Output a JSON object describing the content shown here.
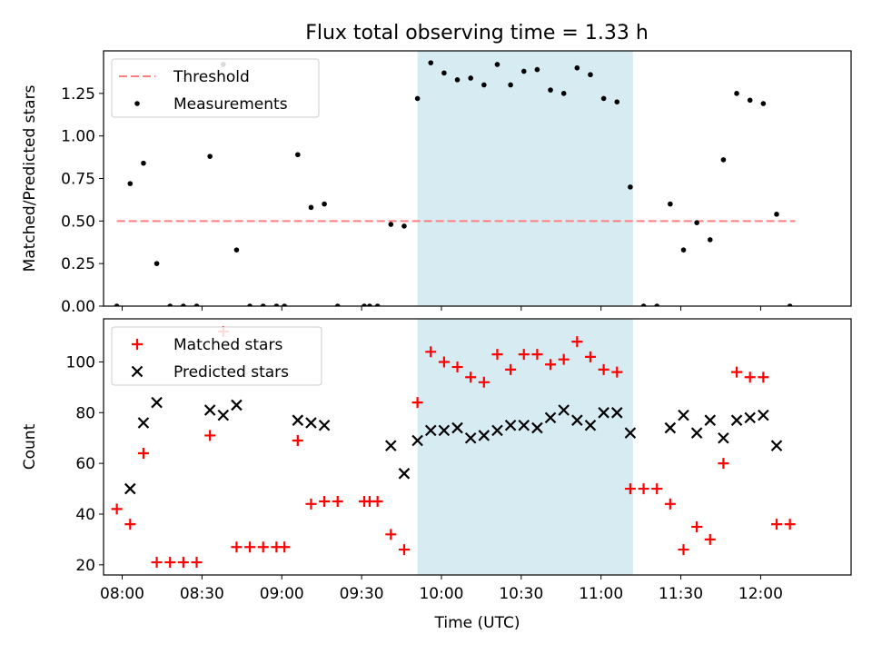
{
  "chart_data": [
    {
      "type": "scatter",
      "title": "Flux total observing time = 1.33 h",
      "ylabel": "Matched/Predicted stars",
      "xlabel": "",
      "ylim": [
        0,
        1.5
      ],
      "xlim": [
        "07:53",
        "12:34"
      ],
      "yticks": [
        0.0,
        0.25,
        0.5,
        0.75,
        1.0,
        1.25
      ],
      "ytick_labels": [
        "0.00",
        "0.25",
        "0.50",
        "0.75",
        "1.00",
        "1.25"
      ],
      "legend_position": "top-left",
      "shaded_region": {
        "from": "09:51",
        "to": "11:12",
        "color": "#add8e6"
      },
      "threshold": {
        "name": "Threshold",
        "value": 0.5,
        "from": "07:58",
        "to": "12:13",
        "color": "#ff7f7f"
      },
      "series": [
        {
          "name": "Measurements",
          "color": "#000000",
          "points": [
            [
              "07:58",
              0.0
            ],
            [
              "08:03",
              0.72
            ],
            [
              "08:08",
              0.84
            ],
            [
              "08:13",
              0.25
            ],
            [
              "08:18",
              0.0
            ],
            [
              "08:23",
              0.0
            ],
            [
              "08:28",
              0.0
            ],
            [
              "08:33",
              0.88
            ],
            [
              "08:38",
              1.42
            ],
            [
              "08:43",
              0.33
            ],
            [
              "08:48",
              0.0
            ],
            [
              "08:53",
              0.0
            ],
            [
              "08:58",
              0.0
            ],
            [
              "09:01",
              0.0
            ],
            [
              "09:06",
              0.89
            ],
            [
              "09:11",
              0.58
            ],
            [
              "09:16",
              0.6
            ],
            [
              "09:21",
              0.0
            ],
            [
              "09:31",
              0.0
            ],
            [
              "09:33",
              0.0
            ],
            [
              "09:36",
              0.0
            ],
            [
              "09:41",
              0.48
            ],
            [
              "09:46",
              0.47
            ],
            [
              "09:51",
              1.22
            ],
            [
              "09:56",
              1.43
            ],
            [
              "10:01",
              1.37
            ],
            [
              "10:06",
              1.33
            ],
            [
              "10:11",
              1.34
            ],
            [
              "10:16",
              1.3
            ],
            [
              "10:21",
              1.42
            ],
            [
              "10:26",
              1.3
            ],
            [
              "10:31",
              1.38
            ],
            [
              "10:36",
              1.39
            ],
            [
              "10:41",
              1.27
            ],
            [
              "10:46",
              1.25
            ],
            [
              "10:51",
              1.4
            ],
            [
              "10:56",
              1.36
            ],
            [
              "11:01",
              1.22
            ],
            [
              "11:06",
              1.2
            ],
            [
              "11:11",
              0.7
            ],
            [
              "11:16",
              0.0
            ],
            [
              "11:21",
              0.0
            ],
            [
              "11:26",
              0.6
            ],
            [
              "11:31",
              0.33
            ],
            [
              "11:36",
              0.49
            ],
            [
              "11:41",
              0.39
            ],
            [
              "11:46",
              0.86
            ],
            [
              "11:51",
              1.25
            ],
            [
              "11:56",
              1.21
            ],
            [
              "12:01",
              1.19
            ],
            [
              "12:06",
              0.54
            ],
            [
              "12:11",
              0.0
            ]
          ]
        }
      ]
    },
    {
      "type": "scatter",
      "title": "",
      "xlabel": "Time (UTC)",
      "ylabel": "Count",
      "ylim": [
        16,
        117
      ],
      "xlim": [
        "07:53",
        "12:34"
      ],
      "yticks": [
        20,
        40,
        60,
        80,
        100
      ],
      "xticks": [
        "08:00",
        "08:30",
        "09:00",
        "09:30",
        "10:00",
        "10:30",
        "11:00",
        "11:30",
        "12:00"
      ],
      "legend_position": "top-left",
      "shaded_region": {
        "from": "09:51",
        "to": "11:12",
        "color": "#add8e6"
      },
      "series": [
        {
          "name": "Matched stars",
          "marker": "+",
          "color": "#ff0000",
          "points": [
            [
              "07:58",
              42
            ],
            [
              "08:03",
              36
            ],
            [
              "08:08",
              64
            ],
            [
              "08:13",
              21
            ],
            [
              "08:18",
              21
            ],
            [
              "08:23",
              21
            ],
            [
              "08:28",
              21
            ],
            [
              "08:33",
              71
            ],
            [
              "08:38",
              112
            ],
            [
              "08:43",
              27
            ],
            [
              "08:48",
              27
            ],
            [
              "08:53",
              27
            ],
            [
              "08:58",
              27
            ],
            [
              "09:01",
              27
            ],
            [
              "09:06",
              69
            ],
            [
              "09:11",
              44
            ],
            [
              "09:16",
              45
            ],
            [
              "09:21",
              45
            ],
            [
              "09:31",
              45
            ],
            [
              "09:33",
              45
            ],
            [
              "09:36",
              45
            ],
            [
              "09:41",
              32
            ],
            [
              "09:46",
              26
            ],
            [
              "09:51",
              84
            ],
            [
              "09:56",
              104
            ],
            [
              "10:01",
              100
            ],
            [
              "10:06",
              98
            ],
            [
              "10:11",
              94
            ],
            [
              "10:16",
              92
            ],
            [
              "10:21",
              103
            ],
            [
              "10:26",
              97
            ],
            [
              "10:31",
              103
            ],
            [
              "10:36",
              103
            ],
            [
              "10:41",
              99
            ],
            [
              "10:46",
              101
            ],
            [
              "10:51",
              108
            ],
            [
              "10:56",
              102
            ],
            [
              "11:01",
              97
            ],
            [
              "11:06",
              96
            ],
            [
              "11:11",
              50
            ],
            [
              "11:16",
              50
            ],
            [
              "11:21",
              50
            ],
            [
              "11:26",
              44
            ],
            [
              "11:31",
              26
            ],
            [
              "11:36",
              35
            ],
            [
              "11:41",
              30
            ],
            [
              "11:46",
              60
            ],
            [
              "11:51",
              96
            ],
            [
              "11:56",
              94
            ],
            [
              "12:01",
              94
            ],
            [
              "12:06",
              36
            ],
            [
              "12:11",
              36
            ]
          ]
        },
        {
          "name": "Predicted stars",
          "marker": "x",
          "color": "#000000",
          "points": [
            [
              "08:03",
              50
            ],
            [
              "08:08",
              76
            ],
            [
              "08:13",
              84
            ],
            [
              "08:33",
              81
            ],
            [
              "08:38",
              79
            ],
            [
              "08:43",
              83
            ],
            [
              "09:06",
              77
            ],
            [
              "09:11",
              76
            ],
            [
              "09:16",
              75
            ],
            [
              "09:41",
              67
            ],
            [
              "09:46",
              56
            ],
            [
              "09:51",
              69
            ],
            [
              "09:56",
              73
            ],
            [
              "10:01",
              73
            ],
            [
              "10:06",
              74
            ],
            [
              "10:11",
              70
            ],
            [
              "10:16",
              71
            ],
            [
              "10:21",
              73
            ],
            [
              "10:26",
              75
            ],
            [
              "10:31",
              75
            ],
            [
              "10:36",
              74
            ],
            [
              "10:41",
              78
            ],
            [
              "10:46",
              81
            ],
            [
              "10:51",
              77
            ],
            [
              "10:56",
              75
            ],
            [
              "11:01",
              80
            ],
            [
              "11:06",
              80
            ],
            [
              "11:11",
              72
            ],
            [
              "11:26",
              74
            ],
            [
              "11:31",
              79
            ],
            [
              "11:36",
              72
            ],
            [
              "11:41",
              77
            ],
            [
              "11:46",
              70
            ],
            [
              "11:51",
              77
            ],
            [
              "11:56",
              78
            ],
            [
              "12:01",
              79
            ],
            [
              "12:06",
              67
            ]
          ]
        }
      ]
    }
  ]
}
